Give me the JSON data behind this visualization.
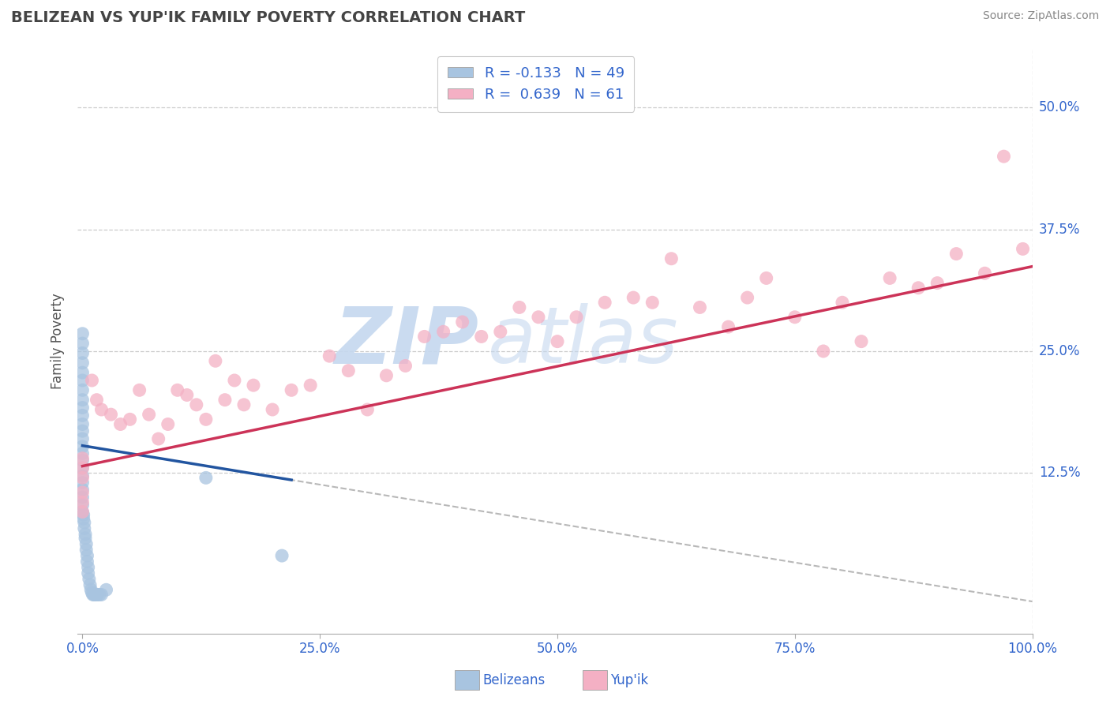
{
  "title": "BELIZEAN VS YUP'IK FAMILY POVERTY CORRELATION CHART",
  "source": "Source: ZipAtlas.com",
  "xlabel_belizean": "Belizeans",
  "xlabel_yupik": "Yup'ik",
  "ylabel": "Family Poverty",
  "xlim": [
    -0.005,
    1.0
  ],
  "ylim": [
    -0.04,
    0.56
  ],
  "xtick_positions": [
    0.0,
    0.25,
    0.5,
    0.75,
    1.0
  ],
  "xtick_labels": [
    "0.0%",
    "25.0%",
    "50.0%",
    "75.0%",
    "100.0%"
  ],
  "ytick_positions": [
    0.125,
    0.25,
    0.375,
    0.5
  ],
  "ytick_labels": [
    "12.5%",
    "25.0%",
    "37.5%",
    "50.0%"
  ],
  "belizean_R": -0.133,
  "belizean_N": 49,
  "yupik_R": 0.639,
  "yupik_N": 61,
  "belizean_color": "#a8c4e0",
  "yupik_color": "#f4b0c4",
  "belizean_line_color": "#2255a0",
  "yupik_line_color": "#cc3358",
  "dashed_line_color": "#b8b8b8",
  "grid_color": "#cccccc",
  "bg_color": "#ffffff",
  "title_color": "#444444",
  "tick_color": "#3366cc",
  "belizean_x": [
    0.0,
    0.0,
    0.0,
    0.0,
    0.0,
    0.0,
    0.0,
    0.0,
    0.0,
    0.0,
    0.0,
    0.0,
    0.0,
    0.0,
    0.0,
    0.0,
    0.0,
    0.0,
    0.0,
    0.0,
    0.0,
    0.0,
    0.0,
    0.001,
    0.001,
    0.002,
    0.002,
    0.003,
    0.003,
    0.004,
    0.004,
    0.005,
    0.005,
    0.006,
    0.006,
    0.007,
    0.008,
    0.009,
    0.01,
    0.011,
    0.012,
    0.013,
    0.015,
    0.016,
    0.018,
    0.02,
    0.025,
    0.13,
    0.21
  ],
  "belizean_y": [
    0.268,
    0.258,
    0.248,
    0.238,
    0.228,
    0.22,
    0.21,
    0.2,
    0.192,
    0.184,
    0.175,
    0.168,
    0.16,
    0.152,
    0.145,
    0.138,
    0.13,
    0.122,
    0.115,
    0.108,
    0.1,
    0.092,
    0.085,
    0.082,
    0.078,
    0.074,
    0.068,
    0.062,
    0.058,
    0.052,
    0.046,
    0.04,
    0.034,
    0.028,
    0.022,
    0.016,
    0.01,
    0.005,
    0.002,
    0.0,
    0.0,
    0.0,
    0.0,
    0.0,
    0.0,
    0.0,
    0.005,
    0.12,
    0.04
  ],
  "yupik_x": [
    0.0,
    0.0,
    0.0,
    0.0,
    0.0,
    0.0,
    0.01,
    0.015,
    0.02,
    0.03,
    0.04,
    0.05,
    0.06,
    0.07,
    0.08,
    0.09,
    0.1,
    0.11,
    0.12,
    0.13,
    0.14,
    0.15,
    0.16,
    0.17,
    0.18,
    0.2,
    0.22,
    0.24,
    0.26,
    0.28,
    0.3,
    0.32,
    0.34,
    0.36,
    0.38,
    0.4,
    0.42,
    0.44,
    0.46,
    0.48,
    0.5,
    0.52,
    0.55,
    0.58,
    0.6,
    0.62,
    0.65,
    0.68,
    0.7,
    0.72,
    0.75,
    0.78,
    0.8,
    0.82,
    0.85,
    0.88,
    0.9,
    0.92,
    0.95,
    0.97,
    0.99
  ],
  "yupik_y": [
    0.14,
    0.13,
    0.12,
    0.105,
    0.095,
    0.085,
    0.22,
    0.2,
    0.19,
    0.185,
    0.175,
    0.18,
    0.21,
    0.185,
    0.16,
    0.175,
    0.21,
    0.205,
    0.195,
    0.18,
    0.24,
    0.2,
    0.22,
    0.195,
    0.215,
    0.19,
    0.21,
    0.215,
    0.245,
    0.23,
    0.19,
    0.225,
    0.235,
    0.265,
    0.27,
    0.28,
    0.265,
    0.27,
    0.295,
    0.285,
    0.26,
    0.285,
    0.3,
    0.305,
    0.3,
    0.345,
    0.295,
    0.275,
    0.305,
    0.325,
    0.285,
    0.25,
    0.3,
    0.26,
    0.325,
    0.315,
    0.32,
    0.35,
    0.33,
    0.45,
    0.355
  ],
  "belizean_line_intercept": 0.153,
  "belizean_line_slope": -0.16,
  "yupik_line_intercept": 0.132,
  "yupik_line_slope": 0.205
}
